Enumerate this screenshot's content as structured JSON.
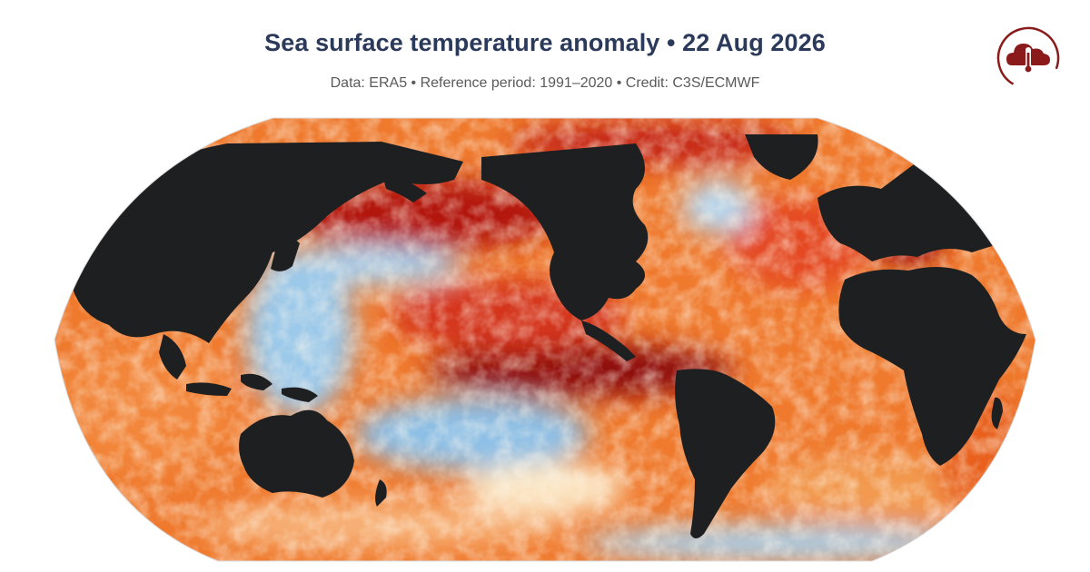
{
  "header": {
    "title": "Sea surface temperature anomaly • 22 Aug 2026",
    "subtitle": "Data: ERA5 • Reference period: 1991–2020 • Credit: C3S/ECMWF"
  },
  "logo": {
    "icon": "cloud-thermometer-icon",
    "color": "#8b1a1a"
  },
  "map": {
    "projection": "robinson",
    "variable": "sea surface temperature anomaly",
    "land_color": "#1e1f21",
    "palette": {
      "strong_warm": "#8e0c0c",
      "warm": "#d9381e",
      "mild_warm": "#f08a3a",
      "neutral": "#fbe6c4",
      "cool": "#a9d0ec",
      "strong_cool": "#3f86c6"
    }
  }
}
